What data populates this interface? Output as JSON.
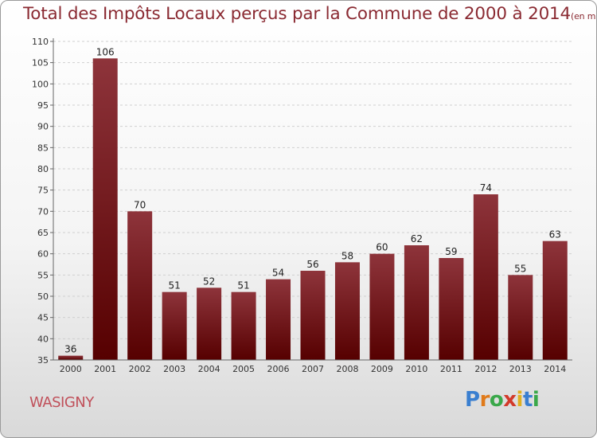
{
  "chart_data": {
    "type": "bar",
    "title": "Total des Impôts Locaux perçus par la Commune de 2000 à 2014",
    "subtitle": "(en milliers d'€)",
    "categories": [
      "2000",
      "2001",
      "2002",
      "2003",
      "2004",
      "2005",
      "2006",
      "2007",
      "2008",
      "2009",
      "2010",
      "2011",
      "2012",
      "2013",
      "2014"
    ],
    "values": [
      36,
      106,
      70,
      51,
      52,
      51,
      54,
      56,
      58,
      60,
      62,
      59,
      74,
      55,
      63
    ],
    "ylim": [
      35,
      110
    ],
    "yticks": [
      "35",
      "40",
      "45",
      "50",
      "55",
      "60",
      "65",
      "70",
      "75",
      "80",
      "85",
      "90",
      "95",
      "100",
      "105",
      "110"
    ],
    "grid": true,
    "bar_color": "#7a1a20"
  },
  "commune": "WASIGNY",
  "logo": {
    "letters": [
      "P",
      "r",
      "o",
      "x",
      "i",
      "t",
      "i"
    ],
    "colors": [
      "#3a7fd0",
      "#e07a1a",
      "#3aa84a",
      "#d23a2a",
      "#e0b020",
      "#3a7fd0",
      "#3aa84a"
    ]
  }
}
